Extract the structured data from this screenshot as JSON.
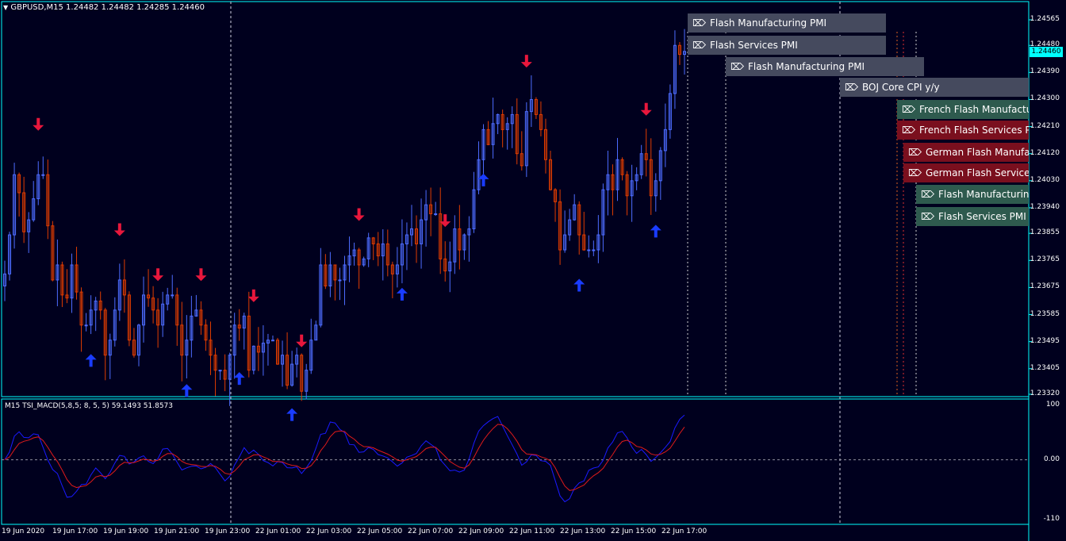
{
  "chart": {
    "symbol_line": "GBPUSD,M15  1.24482 1.24482 1.24285 1.24460",
    "current_price": "1.24460",
    "price_ticks": [
      "1.24565",
      "1.24480",
      "1.24390",
      "1.24300",
      "1.24210",
      "1.24120",
      "1.24030",
      "1.23940",
      "1.23855",
      "1.23765",
      "1.23675",
      "1.23585",
      "1.23495",
      "1.23405",
      "1.23320"
    ],
    "price_range": [
      1.2332,
      1.24565
    ],
    "indicator_label": "M15 TSI_MACD(5,8,5; 8, 5, 5) 59.1493 51.8573",
    "indicator_ticks": [
      "100",
      "0.00",
      "-110"
    ],
    "indicator_range": [
      -110,
      100
    ],
    "time_labels": [
      "19 Jun 2020",
      "19 Jun 17:00",
      "19 Jun 19:00",
      "19 Jun 21:00",
      "19 Jun 23:00",
      "22 Jun 01:00",
      "22 Jun 03:00",
      "22 Jun 05:00",
      "22 Jun 07:00",
      "22 Jun 09:00",
      "22 Jun 11:00",
      "22 Jun 13:00",
      "22 Jun 15:00",
      "22 Jun 17:00"
    ],
    "colors": {
      "background": "#00001e",
      "frame": "#00ffff",
      "bull_candle": "#4d6cff",
      "bear_candle": "#e03c00",
      "up_arrow": "#1a3cff",
      "down_arrow": "#e8173c",
      "tsi_line": "#1a1aff",
      "signal_line": "#e01a1a"
    },
    "events": [
      {
        "title": "Flash Manufacturing PMI",
        "color": "#454a5e"
      },
      {
        "title": "Flash Services PMI",
        "color": "#454a5e"
      },
      {
        "title": "Flash Manufacturing PMI",
        "color": "#454a5e"
      },
      {
        "title": "BOJ Core CPI y/y",
        "color": "#454a5e"
      },
      {
        "title": "French Flash Manufacturing PMI",
        "color": "#2e5a4e"
      },
      {
        "title": "French Flash Services PMI",
        "color": "#7a0f1e"
      },
      {
        "title": "German Flash Manufacturing PMI",
        "color": "#7a0f1e"
      },
      {
        "title": "German Flash Services PMI",
        "color": "#7a0f1e"
      },
      {
        "title": "Flash Manufacturing PMI",
        "color": "#2e5a4e"
      },
      {
        "title": "Flash Services PMI",
        "color": "#2e5a4e"
      }
    ]
  },
  "chart_data": {
    "type": "candlestick",
    "symbol": "GBPUSD",
    "timeframe": "M15",
    "ohlc_last": {
      "open": 1.24482,
      "high": 1.24482,
      "low": 1.24285,
      "close": 1.2446
    },
    "closes": [
      1.2372,
      1.2385,
      1.2405,
      1.2399,
      1.2386,
      1.239,
      1.2397,
      1.2405,
      1.2405,
      1.2388,
      1.237,
      1.2375,
      1.2365,
      1.2364,
      1.2375,
      1.2366,
      1.2355,
      1.2355,
      1.236,
      1.2363,
      1.236,
      1.2345,
      1.235,
      1.236,
      1.237,
      1.2365,
      1.235,
      1.2345,
      1.2355,
      1.2365,
      1.2364,
      1.236,
      1.2355,
      1.2362,
      1.2365,
      1.2365,
      1.2355,
      1.2345,
      1.235,
      1.2358,
      1.236,
      1.2355,
      1.235,
      1.2345,
      1.234,
      1.234,
      1.2337,
      1.2345,
      1.2355,
      1.2354,
      1.2358,
      1.234,
      1.2348,
      1.2346,
      1.2349,
      1.235,
      1.235,
      1.2342,
      1.2345,
      1.2335,
      1.2342,
      1.2345,
      1.2333,
      1.234,
      1.235,
      1.2355,
      1.2375,
      1.2368,
      1.2375,
      1.237,
      1.237,
      1.2375,
      1.2378,
      1.238,
      1.2375,
      1.2377,
      1.2384,
      1.2382,
      1.2378,
      1.2382,
      1.2375,
      1.2372,
      1.2375,
      1.2382,
      1.2385,
      1.2387,
      1.2382,
      1.239,
      1.2395,
      1.2392,
      1.2392,
      1.2377,
      1.2373,
      1.2376,
      1.2387,
      1.238,
      1.2385,
      1.2387,
      1.24,
      1.241,
      1.242,
      1.2415,
      1.2422,
      1.2425,
      1.242,
      1.2422,
      1.2425,
      1.2412,
      1.2408,
      1.2426,
      1.243,
      1.2425,
      1.242,
      1.241,
      1.24,
      1.2396,
      1.238,
      1.2385,
      1.239,
      1.2395,
      1.2385,
      1.238,
      1.238,
      1.238,
      1.2385,
      1.24,
      1.2405,
      1.24,
      1.241,
      1.2405,
      1.2398,
      1.2403,
      1.2405,
      1.2412,
      1.241,
      1.2398,
      1.2403,
      1.2413,
      1.242,
      1.2432,
      1.2448,
      1.2445,
      1.2446
    ]
  }
}
